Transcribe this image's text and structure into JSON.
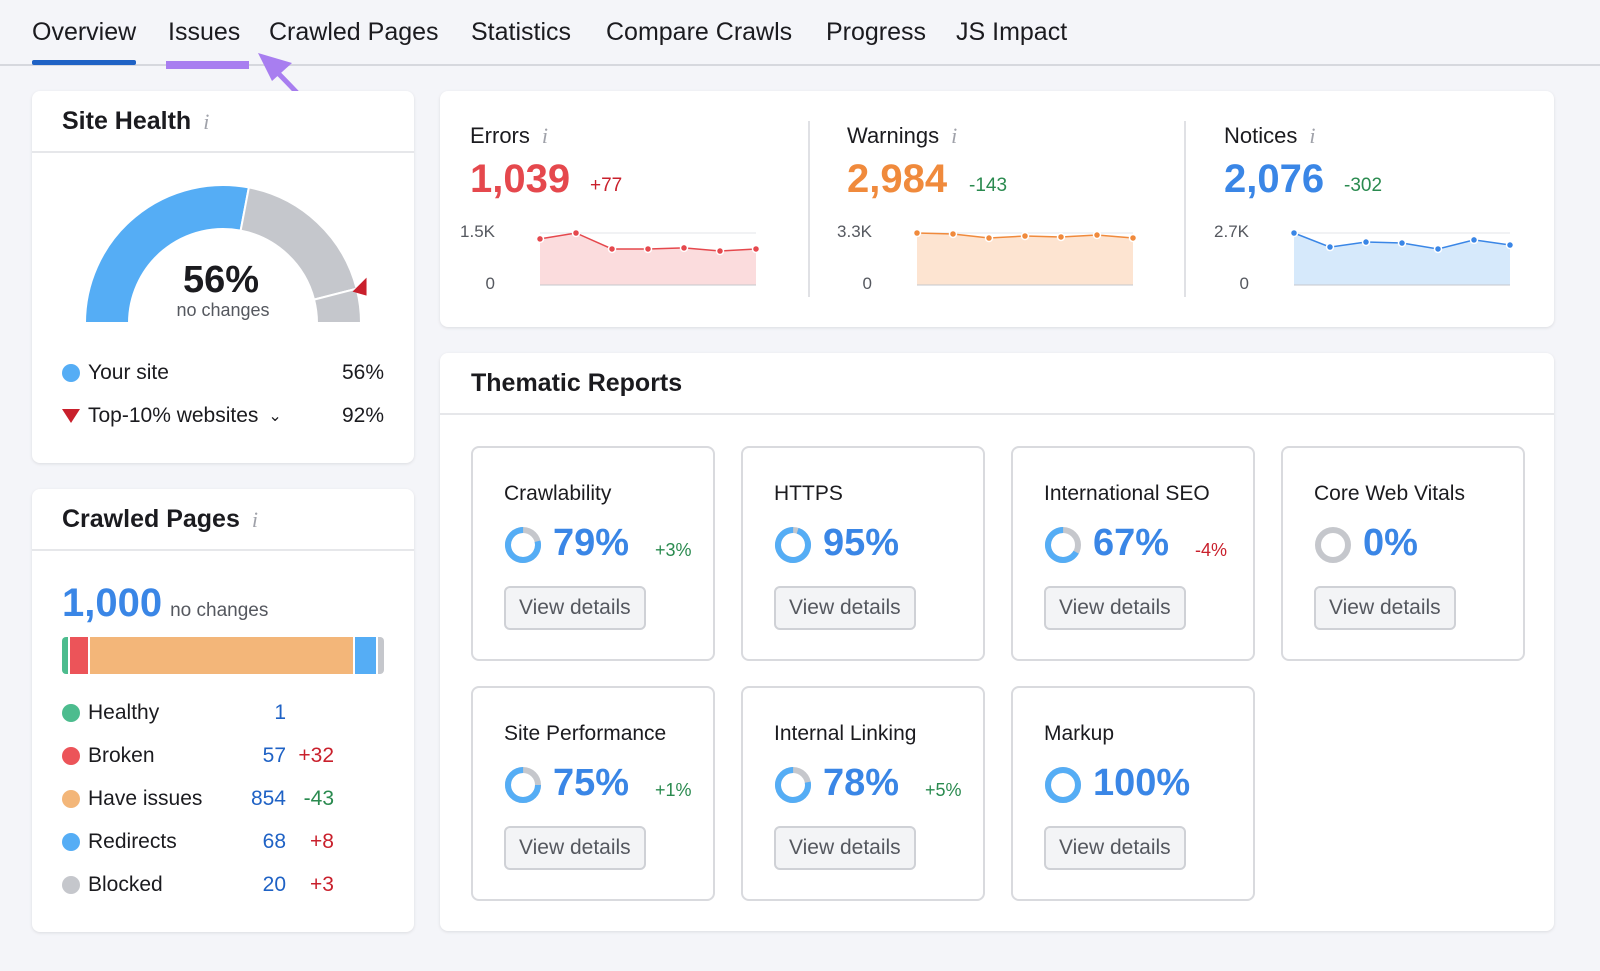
{
  "tabs": [
    "Overview",
    "Issues",
    "Crawled Pages",
    "Statistics",
    "Compare Crawls",
    "Progress",
    "JS Impact"
  ],
  "active_tab": "Overview",
  "annotation": {
    "color": "#a87ef0",
    "highlighted_tab": "Issues"
  },
  "site_health": {
    "title": "Site Health",
    "info_icon": "i",
    "value": "56%",
    "percent": 56,
    "sub": "no changes",
    "top10_percent": 92,
    "legend": [
      {
        "label": "Your site",
        "value": "56%",
        "color": "#55adf5",
        "marker": "dot"
      },
      {
        "label": "Top-10% websites",
        "value": "92%",
        "color": "#c9202c",
        "marker": "triangle-down"
      }
    ]
  },
  "crawled_pages": {
    "title": "Crawled Pages",
    "info_icon": "i",
    "total": "1,000",
    "sub": "no changes",
    "items": [
      {
        "label": "Healthy",
        "count": "1",
        "delta": "",
        "value": 1,
        "color": "#4cbc8e"
      },
      {
        "label": "Broken",
        "count": "57",
        "delta": "+32",
        "value": 57,
        "color": "#ec5459"
      },
      {
        "label": "Have issues",
        "count": "854",
        "delta": "-43",
        "value": 854,
        "color": "#f3b679"
      },
      {
        "label": "Redirects",
        "count": "68",
        "delta": "+8",
        "value": 68,
        "color": "#55adf5"
      },
      {
        "label": "Blocked",
        "count": "20",
        "delta": "+3",
        "value": 20,
        "color": "#c5c7cc"
      }
    ]
  },
  "metrics": [
    {
      "label": "Errors",
      "value": "1,039",
      "delta": "+77",
      "delta_type": "neg",
      "color": "#e5484d",
      "fill": "#fbdcdd",
      "ytop": "1.5K",
      "ybottom": "0",
      "max": 1500,
      "series": [
        1330,
        1500,
        1040,
        1040,
        1070,
        980,
        1039
      ]
    },
    {
      "label": "Warnings",
      "value": "2,984",
      "delta": "-143",
      "delta_type": "pos",
      "color": "#f08a3c",
      "fill": "#fde4d1",
      "ytop": "3.3K",
      "ybottom": "0",
      "max": 3300,
      "series": [
        3300,
        3240,
        2980,
        3110,
        3050,
        3170,
        2984
      ]
    },
    {
      "label": "Notices",
      "value": "2,076",
      "delta": "-302",
      "delta_type": "pos",
      "color": "#3a86e6",
      "fill": "#d6e9fb",
      "ytop": "2.7K",
      "ybottom": "0",
      "max": 2700,
      "series": [
        2700,
        1970,
        2230,
        2180,
        1870,
        2340,
        2076
      ]
    }
  ],
  "thematic": {
    "title": "Thematic Reports",
    "button_label": "View details",
    "reports": [
      {
        "name": "Crawlability",
        "value": "79%",
        "percent": 79,
        "delta": "+3%",
        "delta_type": "pos"
      },
      {
        "name": "HTTPS",
        "value": "95%",
        "percent": 95,
        "delta": "",
        "delta_type": ""
      },
      {
        "name": "International SEO",
        "value": "67%",
        "percent": 67,
        "delta": "-4%",
        "delta_type": "neg"
      },
      {
        "name": "Core Web Vitals",
        "value": "0%",
        "percent": 0,
        "delta": "",
        "delta_type": ""
      },
      {
        "name": "Site Performance",
        "value": "75%",
        "percent": 75,
        "delta": "+1%",
        "delta_type": "pos"
      },
      {
        "name": "Internal Linking",
        "value": "78%",
        "percent": 78,
        "delta": "+5%",
        "delta_type": "pos"
      },
      {
        "name": "Markup",
        "value": "100%",
        "percent": 100,
        "delta": "",
        "delta_type": ""
      }
    ]
  }
}
